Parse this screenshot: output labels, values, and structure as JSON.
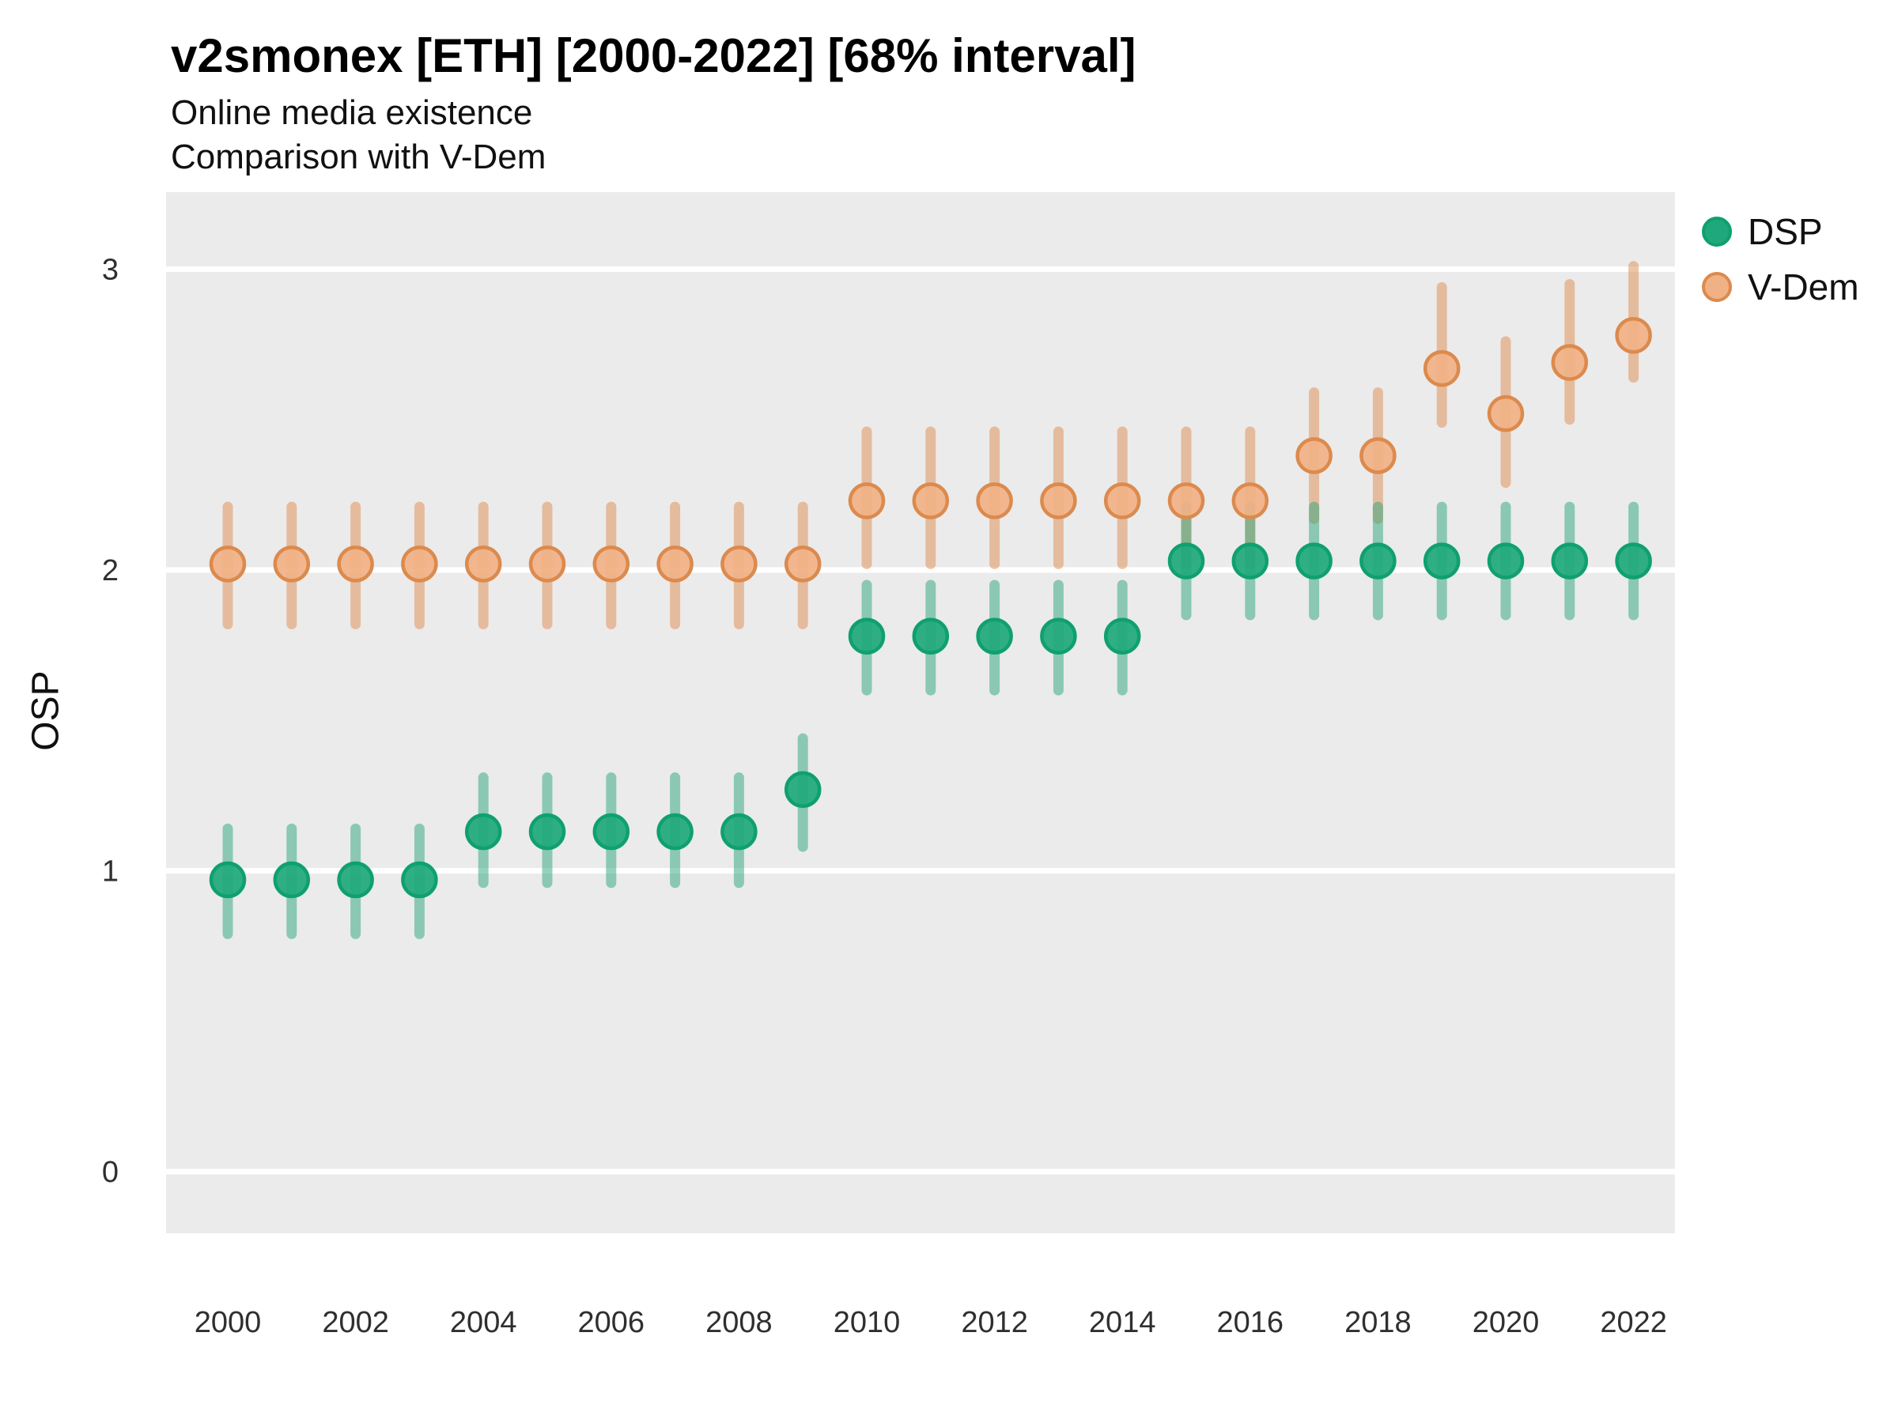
{
  "header": {
    "title": "v2smonex [ETH] [2000-2022] [68% interval]",
    "subtitle_line1": "Online media existence",
    "subtitle_line2": "Comparison with V-Dem"
  },
  "y_axis_title": "OSP",
  "legend": {
    "position": "right",
    "items": [
      {
        "label": "DSP",
        "icon": "green-dot-icon"
      },
      {
        "label": "V-Dem",
        "icon": "orange-dot-icon"
      }
    ]
  },
  "colors": {
    "panel_background": "#EBEBEB",
    "gridline": "#FFFFFF",
    "title_text": "#000000",
    "axis_text": "#2F2F2F",
    "dsp_green": "#1EA87B",
    "vdem_orange": "#F1B186"
  },
  "chart_data": {
    "type": "scatter",
    "subtype": "point with 68% interval error bars (pointrange)",
    "title": "v2smonex [ETH] [2000-2022] [68% interval]",
    "subtitle": [
      "Online media existence",
      "Comparison with V-Dem"
    ],
    "xlabel": "",
    "ylabel": "OSP",
    "interval": "68%",
    "grid": "horizontal major gridlines only",
    "legend_position": "right",
    "x": [
      2000,
      2001,
      2002,
      2003,
      2004,
      2005,
      2006,
      2007,
      2008,
      2009,
      2010,
      2011,
      2012,
      2013,
      2014,
      2015,
      2016,
      2017,
      2018,
      2019,
      2020,
      2021,
      2022
    ],
    "x_ticks": [
      2000,
      2002,
      2004,
      2006,
      2008,
      2010,
      2012,
      2014,
      2016,
      2018,
      2020,
      2022
    ],
    "y_ticks": [
      0,
      1,
      2,
      3
    ],
    "panel_ylim": [
      -0.2,
      3.25
    ],
    "series": [
      {
        "name": "DSP",
        "point_fill": "#1EA87B",
        "point_stroke": "#0FA070",
        "bar_color": "#2BA67E",
        "bar_opacity": 0.5,
        "values": [
          0.97,
          0.97,
          0.97,
          0.97,
          1.13,
          1.13,
          1.13,
          1.13,
          1.13,
          1.27,
          1.78,
          1.78,
          1.78,
          1.78,
          1.78,
          2.03,
          2.03,
          2.03,
          2.03,
          2.03,
          2.03,
          2.03,
          2.03
        ],
        "lower": [
          0.79,
          0.79,
          0.79,
          0.79,
          0.96,
          0.96,
          0.96,
          0.96,
          0.96,
          1.08,
          1.6,
          1.6,
          1.6,
          1.6,
          1.6,
          1.85,
          1.85,
          1.85,
          1.85,
          1.85,
          1.85,
          1.85,
          1.85
        ],
        "upper": [
          1.14,
          1.14,
          1.14,
          1.14,
          1.31,
          1.31,
          1.31,
          1.31,
          1.31,
          1.44,
          1.95,
          1.95,
          1.95,
          1.95,
          1.95,
          2.21,
          2.21,
          2.21,
          2.21,
          2.21,
          2.21,
          2.21,
          2.21
        ]
      },
      {
        "name": "V-Dem",
        "point_fill": "#F1B186",
        "point_stroke": "#DC8A4D",
        "bar_color": "#E08C50",
        "bar_opacity": 0.5,
        "values": [
          2.02,
          2.02,
          2.02,
          2.02,
          2.02,
          2.02,
          2.02,
          2.02,
          2.02,
          2.02,
          2.23,
          2.23,
          2.23,
          2.23,
          2.23,
          2.23,
          2.23,
          2.38,
          2.38,
          2.67,
          2.52,
          2.69,
          2.78
        ],
        "lower": [
          1.82,
          1.82,
          1.82,
          1.82,
          1.82,
          1.82,
          1.82,
          1.82,
          1.82,
          1.82,
          2.02,
          2.02,
          2.02,
          2.02,
          2.02,
          2.02,
          2.02,
          2.17,
          2.17,
          2.49,
          2.29,
          2.5,
          2.64
        ],
        "upper": [
          2.21,
          2.21,
          2.21,
          2.21,
          2.21,
          2.21,
          2.21,
          2.21,
          2.21,
          2.21,
          2.46,
          2.46,
          2.46,
          2.46,
          2.46,
          2.46,
          2.46,
          2.59,
          2.59,
          2.94,
          2.76,
          2.95,
          3.01
        ]
      }
    ]
  }
}
